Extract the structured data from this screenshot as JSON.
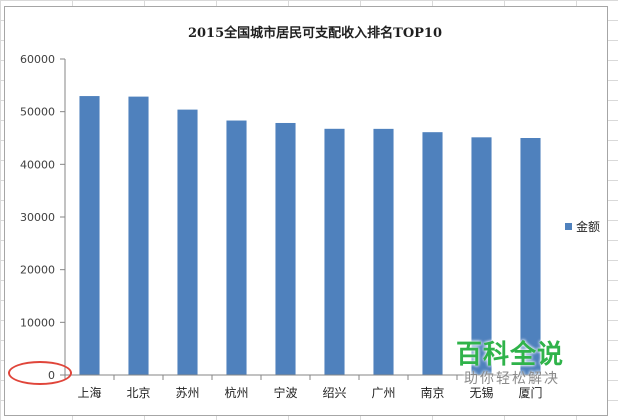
{
  "chart_data": {
    "type": "bar",
    "title": "2015全国城市居民可支配收入排名TOP10",
    "categories": [
      "上海",
      "北京",
      "苏州",
      "杭州",
      "宁波",
      "绍兴",
      "广州",
      "南京",
      "无锡",
      "厦门"
    ],
    "series": [
      {
        "name": "金额",
        "color": "#4f81bd",
        "values": [
          52962,
          52859,
          50390,
          48316,
          47852,
          46747,
          46735,
          46104,
          45129,
          45000
        ]
      }
    ],
    "ylim": [
      0,
      60000
    ],
    "yticks": [
      0,
      10000,
      20000,
      30000,
      40000,
      50000,
      60000
    ],
    "grid": false,
    "legend": "right"
  },
  "watermark": {
    "logo": "百科全说",
    "tagline": "助你轻松解决"
  },
  "colors": {
    "bar": "#4f81bd",
    "axis": "#868686",
    "annotation": "#e0453a",
    "watermark": "#2fb34a"
  }
}
